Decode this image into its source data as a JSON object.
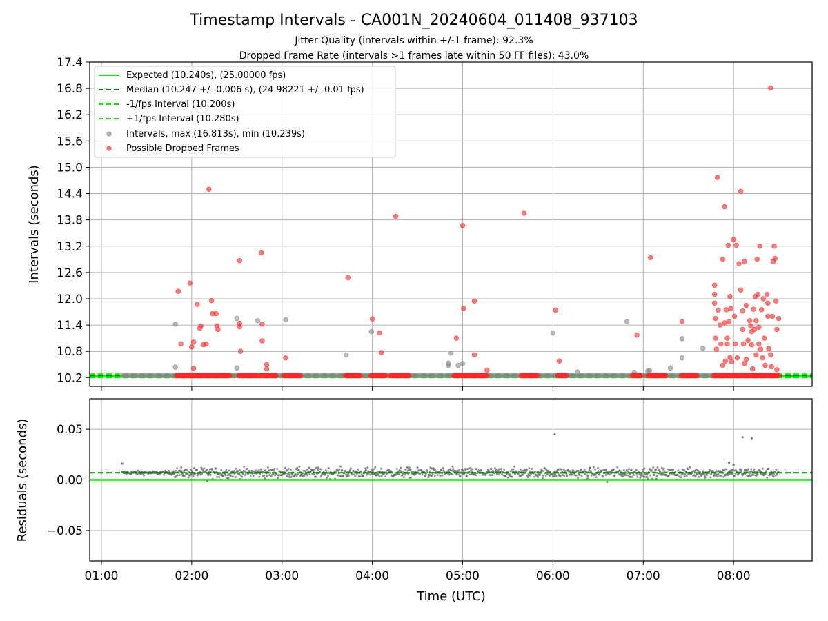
{
  "figure": {
    "title": "Timestamp Intervals - CA001N_20240604_011408_937103",
    "subtitle_1": "Jitter Quality (intervals within +/-1 frame): 92.3%",
    "subtitle_2": "Dropped Frame Rate (intervals >1 frames late within 50 FF files): 43.0%"
  },
  "colors": {
    "expected": "#00ee00",
    "median": "#007700",
    "interval_points": "#888888",
    "dropped_points": "#ff2a2a",
    "residual_points": "#666666",
    "grid": "#b0b0b0"
  },
  "chart_data": [
    {
      "type": "scatter",
      "ylabel": "Intervals (seconds)",
      "ylim": [
        10.0,
        17.4
      ],
      "xlim_hours": [
        0.87,
        8.87
      ],
      "yticks": [
        "10.2",
        "10.8",
        "11.4",
        "12.0",
        "12.6",
        "13.2",
        "13.8",
        "14.4",
        "15.0",
        "15.6",
        "16.2",
        "16.8",
        "17.4"
      ],
      "grid": true,
      "legend_position": "upper-left",
      "lines": [
        {
          "name": "Expected (10.240s), (25.00000 fps)",
          "y": 10.24,
          "style": "solid"
        },
        {
          "name": "Median (10.247 +/- 0.006 s), (24.98221 +/- 0.01 fps)",
          "y": 10.247,
          "style": "dashed"
        },
        {
          "name": "-1/fps Interval (10.200s)",
          "y": 10.2,
          "style": "dashed"
        },
        {
          "name": "+1/fps Interval (10.280s)",
          "y": 10.28,
          "style": "dashed"
        }
      ],
      "series": [
        {
          "name": "Intervals, max (16.813s), min (10.239s)",
          "points": [
            [
              1.82,
              11.42
            ],
            [
              1.82,
              10.44
            ],
            [
              2.5,
              11.55
            ],
            [
              2.5,
              10.42
            ],
            [
              2.73,
              11.5
            ],
            [
              3.04,
              11.52
            ],
            [
              3.71,
              10.72
            ],
            [
              3.99,
              11.25
            ],
            [
              4.84,
              10.53
            ],
            [
              4.84,
              10.48
            ],
            [
              4.87,
              10.76
            ],
            [
              4.95,
              10.48
            ],
            [
              5.0,
              10.52
            ],
            [
              6.0,
              11.22
            ],
            [
              6.27,
              10.33
            ],
            [
              6.82,
              11.48
            ],
            [
              6.9,
              10.32
            ],
            [
              7.05,
              10.35
            ],
            [
              7.07,
              10.36
            ],
            [
              7.3,
              10.42
            ],
            [
              7.43,
              10.65
            ],
            [
              7.43,
              11.09
            ],
            [
              7.66,
              10.87
            ]
          ],
          "baseline": {
            "from": 1.23,
            "to": 8.5,
            "y": 10.245
          }
        },
        {
          "name": "Possible Dropped Frames",
          "points": [
            [
              1.85,
              12.17
            ],
            [
              1.88,
              10.97
            ],
            [
              1.98,
              12.36
            ],
            [
              2.0,
              10.9
            ],
            [
              2.02,
              10.41
            ],
            [
              2.02,
              11.01
            ],
            [
              2.06,
              11.87
            ],
            [
              2.09,
              11.33
            ],
            [
              2.1,
              11.38
            ],
            [
              2.13,
              10.95
            ],
            [
              2.16,
              10.97
            ],
            [
              2.19,
              14.5
            ],
            [
              2.22,
              11.96
            ],
            [
              2.23,
              11.66
            ],
            [
              2.27,
              11.66
            ],
            [
              2.28,
              11.38
            ],
            [
              2.29,
              11.3
            ],
            [
              2.53,
              12.87
            ],
            [
              2.53,
              11.44
            ],
            [
              2.53,
              11.36
            ],
            [
              2.54,
              10.8
            ],
            [
              2.77,
              13.05
            ],
            [
              2.78,
              11.42
            ],
            [
              2.78,
              11.04
            ],
            [
              2.83,
              10.5
            ],
            [
              2.83,
              10.4
            ],
            [
              3.04,
              10.65
            ],
            [
              3.73,
              12.48
            ],
            [
              4.0,
              11.54
            ],
            [
              4.08,
              11.22
            ],
            [
              4.1,
              10.77
            ],
            [
              4.26,
              13.88
            ],
            [
              4.93,
              11.1
            ],
            [
              5.01,
              11.78
            ],
            [
              5.0,
              13.67
            ],
            [
              5.13,
              11.95
            ],
            [
              5.13,
              10.72
            ],
            [
              5.27,
              10.37
            ],
            [
              5.68,
              13.95
            ],
            [
              6.03,
              11.74
            ],
            [
              6.07,
              10.58
            ],
            [
              6.93,
              11.17
            ],
            [
              7.08,
              12.94
            ],
            [
              7.43,
              11.48
            ],
            [
              7.79,
              12.31
            ],
            [
              7.79,
              12.1
            ],
            [
              7.79,
              11.9
            ],
            [
              7.8,
              11.55
            ],
            [
              7.8,
              11.1
            ],
            [
              7.81,
              10.85
            ],
            [
              7.82,
              14.77
            ],
            [
              7.83,
              11.74
            ],
            [
              7.85,
              11.4
            ],
            [
              7.86,
              10.97
            ],
            [
              7.88,
              10.48
            ],
            [
              7.88,
              12.9
            ],
            [
              7.9,
              14.1
            ],
            [
              7.9,
              11.45
            ],
            [
              7.91,
              10.58
            ],
            [
              7.92,
              11.75
            ],
            [
              7.93,
              11.1
            ],
            [
              7.93,
              10.97
            ],
            [
              7.94,
              13.22
            ],
            [
              7.95,
              11.48
            ],
            [
              7.96,
              10.66
            ],
            [
              7.96,
              12.05
            ],
            [
              7.97,
              11.78
            ],
            [
              7.98,
              10.56
            ],
            [
              8.0,
              13.35
            ],
            [
              8.01,
              11.6
            ],
            [
              8.02,
              10.97
            ],
            [
              8.03,
              13.22
            ],
            [
              8.04,
              10.65
            ],
            [
              8.06,
              12.8
            ],
            [
              8.08,
              14.45
            ],
            [
              8.08,
              12.2
            ],
            [
              8.1,
              11.72
            ],
            [
              8.1,
              11.3
            ],
            [
              8.11,
              10.97
            ],
            [
              8.12,
              12.85
            ],
            [
              8.12,
              10.52
            ],
            [
              8.14,
              11.85
            ],
            [
              8.14,
              10.62
            ],
            [
              8.16,
              11.05
            ],
            [
              8.18,
              11.5
            ],
            [
              8.19,
              11.38
            ],
            [
              8.2,
              11.25
            ],
            [
              8.2,
              10.95
            ],
            [
              8.21,
              10.4
            ],
            [
              8.22,
              11.76
            ],
            [
              8.23,
              11.3
            ],
            [
              8.24,
              12.05
            ],
            [
              8.25,
              11.5
            ],
            [
              8.25,
              10.72
            ],
            [
              8.26,
              12.9
            ],
            [
              8.27,
              12.1
            ],
            [
              8.28,
              11.35
            ],
            [
              8.28,
              10.97
            ],
            [
              8.29,
              13.2
            ],
            [
              8.3,
              10.85
            ],
            [
              8.31,
              11.75
            ],
            [
              8.32,
              10.65
            ],
            [
              8.33,
              12.0
            ],
            [
              8.34,
              11.1
            ],
            [
              8.35,
              10.48
            ],
            [
              8.37,
              12.1
            ],
            [
              8.38,
              11.9
            ],
            [
              8.38,
              11.6
            ],
            [
              8.39,
              10.86
            ],
            [
              8.41,
              16.81
            ],
            [
              8.41,
              10.72
            ],
            [
              8.42,
              10.45
            ],
            [
              8.43,
              11.6
            ],
            [
              8.44,
              12.85
            ],
            [
              8.45,
              13.2
            ],
            [
              8.46,
              12.92
            ],
            [
              8.47,
              11.95
            ],
            [
              8.48,
              11.3
            ],
            [
              8.48,
              10.38
            ],
            [
              8.5,
              11.55
            ]
          ],
          "runs": [
            [
              1.83,
              2.43
            ],
            [
              2.52,
              2.73
            ],
            [
              2.76,
              2.94
            ],
            [
              3.02,
              3.21
            ],
            [
              3.7,
              3.87
            ],
            [
              3.98,
              4.15
            ],
            [
              4.2,
              4.41
            ],
            [
              4.9,
              5.27
            ],
            [
              5.65,
              5.83
            ],
            [
              6.05,
              6.16
            ],
            [
              6.88,
              6.98
            ],
            [
              7.05,
              7.25
            ],
            [
              7.42,
              7.6
            ],
            [
              7.78,
              8.5
            ]
          ]
        }
      ]
    },
    {
      "type": "scatter",
      "xlabel": "Time (UTC)",
      "ylabel": "Residuals (seconds)",
      "ylim": [
        -0.08,
        0.08
      ],
      "xlim_hours": [
        0.87,
        8.87
      ],
      "xticks": [
        "01:00",
        "02:00",
        "03:00",
        "04:00",
        "05:00",
        "06:00",
        "07:00",
        "08:00"
      ],
      "yticks": [
        "0.05",
        "0.00",
        "−0.05"
      ],
      "grid": true,
      "lines": [
        {
          "name": "Expected",
          "y": 0.0,
          "style": "solid"
        },
        {
          "name": "Median",
          "y": 0.007,
          "style": "dashed"
        }
      ],
      "series": [
        {
          "name": "Residuals",
          "center": 0.007,
          "spread": 0.0035,
          "range": [
            1.23,
            8.5
          ],
          "outliers": [
            [
              1.23,
              0.016
            ],
            [
              6.02,
              0.045
            ],
            [
              8.1,
              0.042
            ],
            [
              8.2,
              0.041
            ],
            [
              7.95,
              0.017
            ],
            [
              6.6,
              -0.002
            ],
            [
              2.17,
              -0.001
            ],
            [
              8.0,
              0.015
            ]
          ]
        }
      ]
    }
  ]
}
